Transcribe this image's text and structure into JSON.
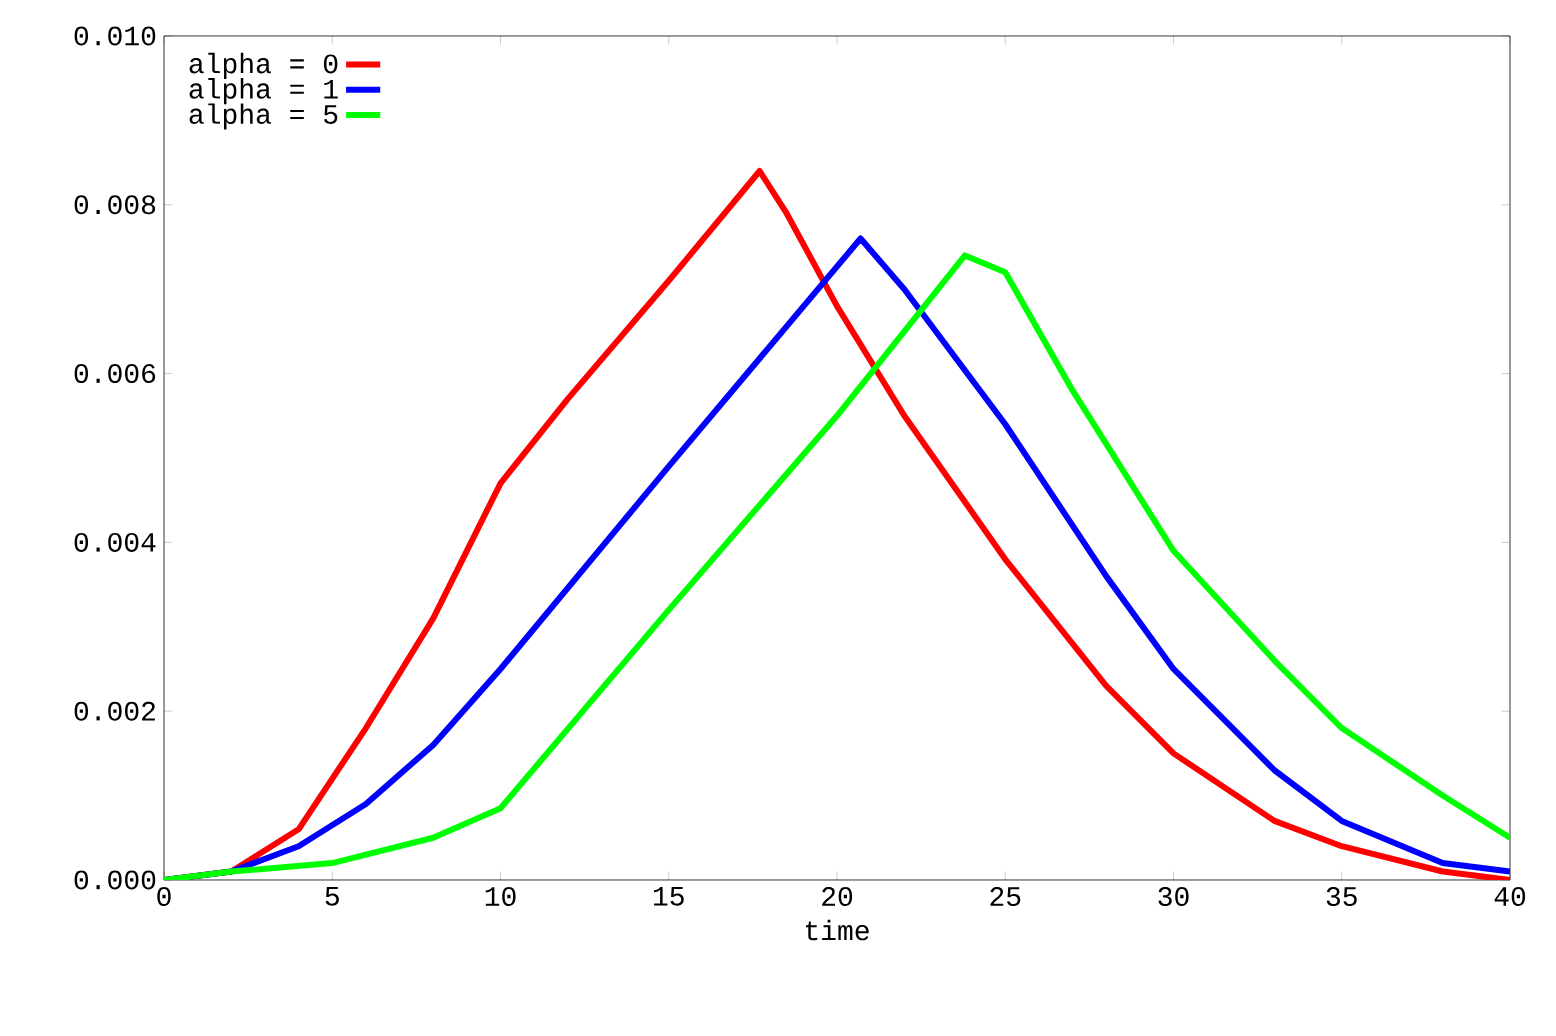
{
  "chart_data": {
    "type": "line",
    "xlabel": "time",
    "xlim": [
      0,
      40
    ],
    "ylim": [
      0,
      0.01
    ],
    "xticks": [
      0,
      5,
      10,
      15,
      20,
      25,
      30,
      35,
      40
    ],
    "yticks": [
      {
        "value": 0,
        "label": "0.000"
      },
      {
        "value": 0.002,
        "label": "0.002"
      },
      {
        "value": 0.004,
        "label": "0.004"
      },
      {
        "value": 0.006,
        "label": "0.006"
      },
      {
        "value": 0.008,
        "label": "0.008"
      },
      {
        "value": 0.01,
        "label": "0.010"
      }
    ],
    "legend": "top left",
    "grid": false,
    "marker": "none",
    "line_style": "solid",
    "series": [
      {
        "name": "alpha = 0",
        "color": "#ff0000",
        "x": [
          0,
          2,
          4,
          6,
          8,
          10,
          12,
          15,
          17.7,
          18.5,
          20,
          22,
          25,
          28,
          30,
          33,
          35,
          38,
          40
        ],
        "values": [
          0,
          0.0001,
          0.0006,
          0.0018,
          0.0031,
          0.0047,
          0.0057,
          0.0071,
          0.0084,
          0.0079,
          0.0068,
          0.0055,
          0.0038,
          0.0023,
          0.0015,
          0.0007,
          0.0004,
          0.0001,
          0
        ]
      },
      {
        "name": "alpha = 1",
        "color": "#0000ff",
        "x": [
          0,
          2,
          4,
          6,
          8,
          10,
          15,
          20.7,
          22,
          25,
          28,
          30,
          33,
          35,
          38,
          40
        ],
        "values": [
          0,
          0.0001,
          0.0004,
          0.0009,
          0.0016,
          0.0025,
          0.0049,
          0.0076,
          0.007,
          0.0054,
          0.0036,
          0.0025,
          0.0013,
          0.0007,
          0.0002,
          0.0001
        ]
      },
      {
        "name": "alpha = 5",
        "color": "#00ff00",
        "x": [
          0,
          2,
          5,
          8,
          10,
          15,
          20,
          23.8,
          25,
          27,
          30,
          33,
          35,
          38,
          40
        ],
        "values": [
          0,
          0.0001,
          0.0002,
          0.0005,
          0.00085,
          0.0032,
          0.0055,
          0.0074,
          0.0072,
          0.0058,
          0.0039,
          0.0026,
          0.0018,
          0.001,
          0.0005
        ]
      }
    ]
  }
}
